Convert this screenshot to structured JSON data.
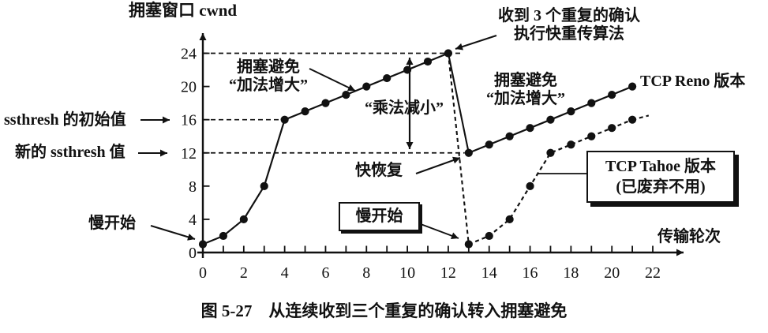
{
  "colors": {
    "ink": "#111111",
    "background": "#ffffff"
  },
  "chart_data": {
    "type": "line",
    "title": "图 5-27　从连续收到三个重复的确认转入拥塞避免",
    "xlabel": "传输轮次",
    "ylabel": "拥塞窗口 cwnd",
    "xlim": [
      0,
      23.5
    ],
    "ylim": [
      0,
      27
    ],
    "grid": false,
    "legend_position": "inline-labels",
    "x_ticks": [
      0,
      1,
      2,
      3,
      4,
      5,
      6,
      7,
      8,
      9,
      10,
      11,
      12,
      13,
      14,
      15,
      16,
      17,
      18,
      19,
      20,
      21,
      22
    ],
    "x_tick_labels": [
      0,
      2,
      4,
      6,
      8,
      10,
      12,
      14,
      16,
      18,
      20,
      22
    ],
    "y_ticks": [
      4,
      8,
      12,
      16,
      20,
      24
    ],
    "y_tick_labels": [
      0,
      4,
      8,
      12,
      16,
      20,
      24
    ],
    "series": [
      {
        "name": "slow-start-then-congestion-avoidance",
        "legend": "慢开始 / 拥塞避免“加法增大”",
        "style": "solid",
        "marker": "dot",
        "points": [
          [
            0,
            1
          ],
          [
            1,
            2
          ],
          [
            2,
            4
          ],
          [
            3,
            8
          ],
          [
            4,
            16
          ],
          [
            5,
            17
          ],
          [
            6,
            18
          ],
          [
            7,
            19
          ],
          [
            8,
            20
          ],
          [
            9,
            21
          ],
          [
            10,
            22
          ],
          [
            11,
            23
          ],
          [
            12,
            24
          ]
        ]
      },
      {
        "name": "tcp-reno-after-fast-recovery",
        "legend": "TCP Reno 版本",
        "style": "solid",
        "marker": "dot",
        "points": [
          [
            13,
            12
          ],
          [
            14,
            13
          ],
          [
            15,
            14
          ],
          [
            16,
            15
          ],
          [
            17,
            16
          ],
          [
            18,
            17
          ],
          [
            19,
            18
          ],
          [
            20,
            19
          ],
          [
            21,
            20
          ]
        ]
      },
      {
        "name": "tcp-tahoe-restart-slow-start",
        "legend": "TCP Tahoe 版本(已废弃不用)",
        "style": "dashed",
        "marker": "dot",
        "points": [
          [
            13,
            1
          ],
          [
            14,
            2
          ],
          [
            15,
            4
          ],
          [
            16,
            8
          ],
          [
            17,
            12
          ],
          [
            18,
            13
          ],
          [
            19,
            14
          ],
          [
            20,
            15
          ],
          [
            21,
            16
          ]
        ]
      }
    ],
    "connectors": [
      {
        "name": "reno-multiplicative-decrease-drop",
        "style": "solid",
        "from": [
          12,
          24
        ],
        "to": [
          13,
          12
        ]
      },
      {
        "name": "tahoe-drop-to-cwnd-1",
        "style": "dashed",
        "from": [
          12,
          24
        ],
        "to": [
          13,
          1
        ]
      },
      {
        "name": "tahoe-continuation-dash",
        "style": "dashed",
        "from": [
          21,
          16
        ],
        "to": [
          21.8,
          16.5
        ]
      }
    ],
    "guides": [
      {
        "name": "cwnd-24-dashed-line",
        "y": 24,
        "x_from": 0,
        "x_to": 12.7
      },
      {
        "name": "ssthresh-initial-16-dashed-line",
        "y": 16,
        "x_from": 0,
        "x_to": 4
      },
      {
        "name": "ssthresh-new-12-dashed-line",
        "y": 12,
        "x_from": 0,
        "x_to": 12.8
      }
    ],
    "key_values": {
      "ssthresh_initial": 16,
      "ssthresh_new": 12,
      "cwnd_at_loss": 24,
      "loss_round": 12
    }
  },
  "annotations": {
    "y_axis_title": "拥塞窗口 cwnd",
    "x_axis_title": "传输轮次",
    "dup_ack_line1": "收到 3 个重复的确认",
    "dup_ack_line2": "执行快重传算法",
    "ca_left_line1": "拥塞避免",
    "ca_left_line2": "“加法增大”",
    "ca_right_line1": "拥塞避免",
    "ca_right_line2": "“加法增大”",
    "multiplicative_decrease": "“乘法减小”",
    "fast_recovery": "快恢复",
    "slow_start_left": "慢开始",
    "slow_start_boxed": "慢开始",
    "ssthresh_initial_label": "ssthresh 的初始值",
    "ssthresh_new_label": "新的 ssthresh 值",
    "reno_label": "TCP Reno 版本",
    "tahoe_box_line1": "TCP Tahoe 版本",
    "tahoe_box_line2": "(已废弃不用)",
    "caption": "图 5-27　从连续收到三个重复的确认转入拥塞避免"
  }
}
